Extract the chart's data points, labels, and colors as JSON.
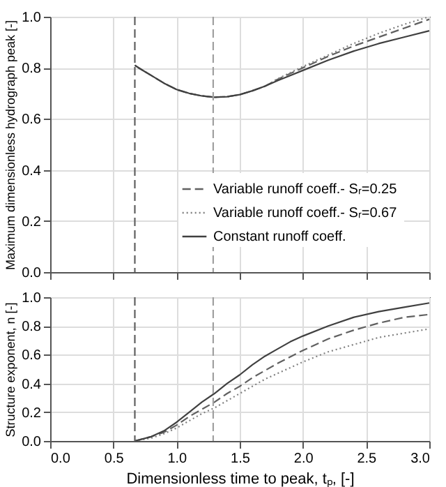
{
  "chart_data": [
    {
      "type": "line",
      "ylabel": "Maximum dimensionless hydrograph peak [-]",
      "legend": "bottom right",
      "grid": true,
      "tick_labels": "y",
      "xlim": [
        0,
        3
      ],
      "xticks": [
        {
          "value": 0,
          "label": null
        },
        {
          "value": 0.5,
          "label": null
        },
        {
          "value": 1,
          "label": null
        },
        {
          "value": 1.5,
          "label": null
        },
        {
          "value": 2,
          "label": null
        },
        {
          "value": 2.5,
          "label": null
        },
        {
          "value": 3,
          "label": null
        }
      ],
      "ylim": [
        0,
        1
      ],
      "yticks": [
        {
          "value": 0,
          "label": "0.0"
        },
        {
          "value": 0.2,
          "label": "0.2"
        },
        {
          "value": 0.4,
          "label": "0.4"
        },
        {
          "value": 0.6,
          "label": "0.6"
        },
        {
          "value": 0.8,
          "label": "0.8"
        },
        {
          "value": 1,
          "label": "1.0"
        }
      ],
      "series": [
        {
          "name": "Variable  runoff coeff.- Sᵣ=0.25",
          "color": "#606060",
          "line_style": "dashed",
          "x": [
            0.67,
            0.7,
            0.75,
            0.8,
            0.9,
            1.0,
            1.1,
            1.2,
            1.3,
            1.4,
            1.5,
            1.6,
            1.7,
            1.8,
            2.0,
            2.2,
            2.4,
            2.6,
            2.8,
            3.0
          ],
          "values": [
            0.81,
            0.8,
            0.785,
            0.77,
            0.74,
            0.715,
            0.7,
            0.69,
            0.685,
            0.687,
            0.695,
            0.71,
            0.728,
            0.755,
            0.8,
            0.845,
            0.885,
            0.92,
            0.955,
            0.99
          ]
        },
        {
          "name": "Variable  runoff coeff.- Sᵣ=0.67",
          "color": "#808080",
          "line_style": "dotted",
          "x": [
            0.67,
            0.7,
            0.75,
            0.8,
            0.9,
            1.0,
            1.1,
            1.2,
            1.3,
            1.4,
            1.5,
            1.6,
            1.7,
            1.8,
            2.0,
            2.2,
            2.4,
            2.6,
            2.8,
            3.0
          ],
          "values": [
            0.81,
            0.8,
            0.785,
            0.77,
            0.74,
            0.715,
            0.7,
            0.69,
            0.685,
            0.687,
            0.695,
            0.71,
            0.728,
            0.757,
            0.805,
            0.85,
            0.895,
            0.935,
            0.97,
            1.0
          ]
        },
        {
          "name": "Constant runoff coeff.",
          "color": "#404040",
          "line_style": "solid",
          "x": [
            0.67,
            0.7,
            0.75,
            0.8,
            0.9,
            1.0,
            1.1,
            1.2,
            1.3,
            1.4,
            1.5,
            1.6,
            1.7,
            1.8,
            1.9,
            2.0,
            2.2,
            2.4,
            2.6,
            2.8,
            3.0
          ],
          "values": [
            0.81,
            0.8,
            0.785,
            0.77,
            0.74,
            0.715,
            0.7,
            0.69,
            0.685,
            0.687,
            0.695,
            0.71,
            0.728,
            0.75,
            0.77,
            0.79,
            0.83,
            0.865,
            0.895,
            0.92,
            0.945
          ]
        }
      ],
      "ref_lines": [
        {
          "axis": "x",
          "value": 0.67,
          "color": "#606060",
          "line_style": "dashed"
        },
        {
          "axis": "x",
          "value": 1.29,
          "color": "#a0a0a0",
          "line_style": "dashed"
        }
      ]
    },
    {
      "type": "line",
      "xlabel": "Dimensionless time to peak, tₚ, [-]",
      "ylabel": "Structure exponent, n [-]",
      "grid": true,
      "xlim": [
        0,
        3
      ],
      "xticks": [
        {
          "value": 0,
          "label": "0.0"
        },
        {
          "value": 0.5,
          "label": "0.5"
        },
        {
          "value": 1,
          "label": "1.0"
        },
        {
          "value": 1.5,
          "label": "1.5"
        },
        {
          "value": 2,
          "label": "2.0"
        },
        {
          "value": 2.5,
          "label": "2.5"
        },
        {
          "value": 3,
          "label": "3.0"
        }
      ],
      "ylim": [
        0,
        1
      ],
      "yticks": [
        {
          "value": 0,
          "label": "0.0"
        },
        {
          "value": 0.2,
          "label": "0.2"
        },
        {
          "value": 0.4,
          "label": "0.4"
        },
        {
          "value": 0.6,
          "label": "0.6"
        },
        {
          "value": 0.8,
          "label": "0.8"
        },
        {
          "value": 1,
          "label": "1.0"
        }
      ],
      "series": [
        {
          "color": "#606060",
          "line_style": "dashed",
          "x": [
            0.67,
            0.8,
            0.9,
            1.0,
            1.1,
            1.2,
            1.3,
            1.4,
            1.5,
            1.6,
            1.7,
            1.8,
            2.0,
            2.2,
            2.4,
            2.6,
            2.8,
            3.0
          ],
          "values": [
            0,
            0.03,
            0.06,
            0.11,
            0.17,
            0.22,
            0.27,
            0.33,
            0.38,
            0.44,
            0.49,
            0.54,
            0.63,
            0.71,
            0.77,
            0.82,
            0.86,
            0.88
          ]
        },
        {
          "color": "#808080",
          "line_style": "dotted",
          "x": [
            0.67,
            0.8,
            0.9,
            1.0,
            1.1,
            1.2,
            1.3,
            1.4,
            1.5,
            1.6,
            1.7,
            1.8,
            2.0,
            2.2,
            2.4,
            2.6,
            2.8,
            3.0
          ],
          "values": [
            0,
            0.02,
            0.05,
            0.09,
            0.14,
            0.19,
            0.23,
            0.28,
            0.33,
            0.38,
            0.43,
            0.47,
            0.55,
            0.62,
            0.67,
            0.72,
            0.75,
            0.78
          ]
        },
        {
          "color": "#404040",
          "line_style": "solid",
          "x": [
            0.67,
            0.8,
            0.9,
            1.0,
            1.1,
            1.2,
            1.3,
            1.4,
            1.5,
            1.6,
            1.7,
            1.8,
            1.9,
            2.0,
            2.2,
            2.4,
            2.6,
            2.8,
            3.0
          ],
          "values": [
            0,
            0.03,
            0.07,
            0.13,
            0.2,
            0.27,
            0.33,
            0.4,
            0.46,
            0.53,
            0.59,
            0.64,
            0.69,
            0.73,
            0.8,
            0.86,
            0.9,
            0.93,
            0.96
          ]
        }
      ],
      "ref_lines": [
        {
          "axis": "x",
          "value": 0.67,
          "color": "#606060",
          "line_style": "dashed"
        },
        {
          "axis": "x",
          "value": 1.29,
          "color": "#a0a0a0",
          "line_style": "dashed"
        }
      ]
    }
  ]
}
